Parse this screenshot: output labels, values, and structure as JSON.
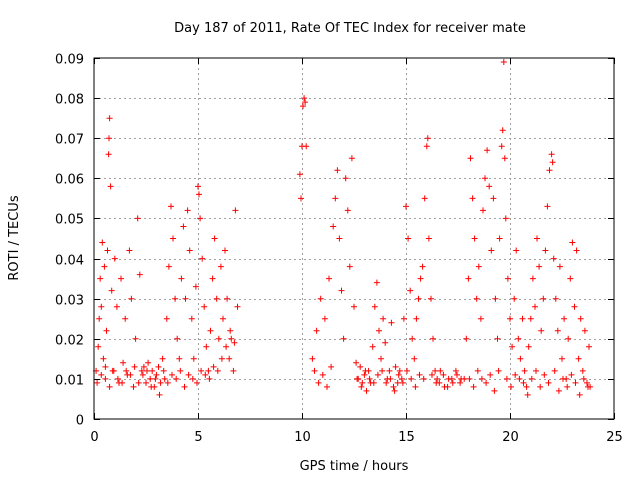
{
  "chart_data": {
    "type": "scatter",
    "title": "Day 187 of 2011, Rate Of TEC Index for receiver mate",
    "xlabel": "GPS time / hours",
    "ylabel": "ROTI / TECUs",
    "xlim": [
      0,
      25
    ],
    "ylim": [
      0,
      0.09
    ],
    "xticks": [
      0,
      5,
      10,
      15,
      20,
      25
    ],
    "xtick_labels": [
      "0",
      "5",
      "10",
      "15",
      "20",
      "25"
    ],
    "yticks": [
      0,
      0.01,
      0.02,
      0.03,
      0.04,
      0.05,
      0.06,
      0.07,
      0.08,
      0.09
    ],
    "ytick_labels": [
      "0",
      "0.01",
      "0.02",
      "0.03",
      "0.04",
      "0.05",
      "0.06",
      "0.07",
      "0.08",
      "0.09"
    ],
    "grid": true,
    "marker": "+",
    "color": "#ff0000",
    "series": [
      {
        "name": "ROTI",
        "points": [
          [
            0.1,
            0.012
          ],
          [
            0.2,
            0.018
          ],
          [
            0.25,
            0.025
          ],
          [
            0.3,
            0.035
          ],
          [
            0.35,
            0.028
          ],
          [
            0.4,
            0.044
          ],
          [
            0.45,
            0.015
          ],
          [
            0.5,
            0.038
          ],
          [
            0.55,
            0.01
          ],
          [
            0.6,
            0.022
          ],
          [
            0.65,
            0.042
          ],
          [
            0.7,
            0.066
          ],
          [
            0.72,
            0.07
          ],
          [
            0.75,
            0.075
          ],
          [
            0.8,
            0.058
          ],
          [
            0.85,
            0.032
          ],
          [
            0.9,
            0.012
          ],
          [
            1.0,
            0.04
          ],
          [
            1.1,
            0.028
          ],
          [
            1.2,
            0.009
          ],
          [
            1.3,
            0.035
          ],
          [
            1.4,
            0.014
          ],
          [
            1.5,
            0.025
          ],
          [
            1.6,
            0.011
          ],
          [
            1.7,
            0.042
          ],
          [
            1.8,
            0.03
          ],
          [
            1.9,
            0.008
          ],
          [
            2.0,
            0.02
          ],
          [
            2.1,
            0.05
          ],
          [
            2.2,
            0.036
          ],
          [
            2.3,
            0.012
          ],
          [
            2.4,
            0.013
          ],
          [
            2.5,
            0.009
          ],
          [
            2.6,
            0.014
          ],
          [
            2.7,
            0.01
          ],
          [
            2.8,
            0.012
          ],
          [
            2.9,
            0.008
          ],
          [
            3.0,
            0.011
          ],
          [
            3.1,
            0.013
          ],
          [
            3.2,
            0.009
          ],
          [
            3.3,
            0.015
          ],
          [
            3.4,
            0.01
          ],
          [
            3.5,
            0.025
          ],
          [
            3.6,
            0.038
          ],
          [
            3.7,
            0.053
          ],
          [
            3.8,
            0.045
          ],
          [
            3.9,
            0.03
          ],
          [
            4.0,
            0.02
          ],
          [
            4.1,
            0.015
          ],
          [
            4.2,
            0.035
          ],
          [
            4.3,
            0.048
          ],
          [
            4.4,
            0.03
          ],
          [
            4.5,
            0.052
          ],
          [
            4.6,
            0.042
          ],
          [
            4.7,
            0.025
          ],
          [
            4.8,
            0.015
          ],
          [
            4.9,
            0.033
          ],
          [
            5.0,
            0.058
          ],
          [
            5.05,
            0.056
          ],
          [
            5.1,
            0.05
          ],
          [
            5.2,
            0.04
          ],
          [
            5.3,
            0.028
          ],
          [
            5.4,
            0.018
          ],
          [
            5.5,
            0.012
          ],
          [
            5.6,
            0.022
          ],
          [
            5.7,
            0.035
          ],
          [
            5.8,
            0.045
          ],
          [
            5.9,
            0.03
          ],
          [
            6.0,
            0.02
          ],
          [
            6.1,
            0.038
          ],
          [
            6.2,
            0.025
          ],
          [
            6.3,
            0.042
          ],
          [
            6.4,
            0.03
          ],
          [
            6.5,
            0.015
          ],
          [
            6.6,
            0.02
          ],
          [
            6.7,
            0.012
          ],
          [
            6.8,
            0.052
          ],
          [
            6.9,
            0.028
          ],
          [
            0.15,
            0.009
          ],
          [
            0.35,
            0.011
          ],
          [
            0.55,
            0.013
          ],
          [
            0.75,
            0.008
          ],
          [
            0.95,
            0.012
          ],
          [
            1.15,
            0.01
          ],
          [
            1.35,
            0.009
          ],
          [
            1.55,
            0.012
          ],
          [
            1.75,
            0.011
          ],
          [
            1.95,
            0.013
          ],
          [
            2.15,
            0.009
          ],
          [
            2.35,
            0.011
          ],
          [
            2.55,
            0.012
          ],
          [
            2.75,
            0.008
          ],
          [
            2.95,
            0.01
          ],
          [
            3.15,
            0.006
          ],
          [
            3.35,
            0.012
          ],
          [
            3.55,
            0.009
          ],
          [
            3.75,
            0.011
          ],
          [
            3.95,
            0.01
          ],
          [
            4.15,
            0.012
          ],
          [
            4.35,
            0.008
          ],
          [
            4.55,
            0.011
          ],
          [
            4.75,
            0.01
          ],
          [
            4.95,
            0.009
          ],
          [
            5.15,
            0.012
          ],
          [
            5.35,
            0.011
          ],
          [
            5.55,
            0.01
          ],
          [
            5.75,
            0.013
          ],
          [
            5.95,
            0.012
          ],
          [
            6.15,
            0.015
          ],
          [
            6.35,
            0.018
          ],
          [
            6.55,
            0.022
          ],
          [
            6.75,
            0.019
          ],
          [
            9.9,
            0.061
          ],
          [
            9.95,
            0.055
          ],
          [
            10.0,
            0.068
          ],
          [
            10.05,
            0.078
          ],
          [
            10.1,
            0.08
          ],
          [
            10.15,
            0.079
          ],
          [
            10.2,
            0.068
          ],
          [
            10.5,
            0.015
          ],
          [
            10.7,
            0.022
          ],
          [
            10.9,
            0.03
          ],
          [
            11.1,
            0.025
          ],
          [
            11.3,
            0.035
          ],
          [
            11.5,
            0.048
          ],
          [
            11.6,
            0.055
          ],
          [
            11.7,
            0.062
          ],
          [
            11.8,
            0.045
          ],
          [
            11.9,
            0.032
          ],
          [
            12.0,
            0.02
          ],
          [
            12.1,
            0.06
          ],
          [
            12.2,
            0.052
          ],
          [
            12.3,
            0.038
          ],
          [
            12.4,
            0.065
          ],
          [
            12.5,
            0.028
          ],
          [
            12.6,
            0.014
          ],
          [
            12.7,
            0.01
          ],
          [
            12.8,
            0.013
          ],
          [
            12.9,
            0.009
          ],
          [
            13.0,
            0.011
          ],
          [
            13.1,
            0.007
          ],
          [
            13.2,
            0.012
          ],
          [
            13.3,
            0.009
          ],
          [
            13.4,
            0.018
          ],
          [
            13.5,
            0.028
          ],
          [
            13.6,
            0.034
          ],
          [
            13.7,
            0.022
          ],
          [
            13.8,
            0.015
          ],
          [
            13.9,
            0.025
          ],
          [
            14.0,
            0.019
          ],
          [
            14.1,
            0.01
          ],
          [
            14.2,
            0.012
          ],
          [
            14.3,
            0.024
          ],
          [
            14.4,
            0.008
          ],
          [
            14.5,
            0.013
          ],
          [
            14.6,
            0.009
          ],
          [
            14.7,
            0.012
          ],
          [
            14.8,
            0.01
          ],
          [
            14.9,
            0.025
          ],
          [
            15.0,
            0.053
          ],
          [
            15.1,
            0.045
          ],
          [
            15.2,
            0.032
          ],
          [
            15.3,
            0.02
          ],
          [
            15.4,
            0.015
          ],
          [
            15.5,
            0.025
          ],
          [
            15.6,
            0.03
          ],
          [
            15.7,
            0.035
          ],
          [
            15.8,
            0.038
          ],
          [
            15.9,
            0.055
          ],
          [
            16.0,
            0.068
          ],
          [
            16.05,
            0.07
          ],
          [
            16.1,
            0.045
          ],
          [
            16.2,
            0.03
          ],
          [
            16.3,
            0.02
          ],
          [
            16.4,
            0.012
          ],
          [
            16.5,
            0.01
          ],
          [
            16.6,
            0.009
          ],
          [
            16.8,
            0.011
          ],
          [
            17.0,
            0.008
          ],
          [
            17.2,
            0.01
          ],
          [
            17.4,
            0.012
          ],
          [
            17.6,
            0.009
          ],
          [
            17.8,
            0.01
          ],
          [
            10.6,
            0.012
          ],
          [
            10.8,
            0.009
          ],
          [
            11.0,
            0.011
          ],
          [
            11.2,
            0.008
          ],
          [
            11.4,
            0.013
          ],
          [
            12.65,
            0.01
          ],
          [
            12.85,
            0.008
          ],
          [
            13.05,
            0.012
          ],
          [
            13.25,
            0.01
          ],
          [
            13.45,
            0.009
          ],
          [
            13.65,
            0.011
          ],
          [
            13.85,
            0.012
          ],
          [
            14.05,
            0.009
          ],
          [
            14.25,
            0.01
          ],
          [
            14.45,
            0.007
          ],
          [
            14.65,
            0.011
          ],
          [
            14.85,
            0.009
          ],
          [
            15.05,
            0.012
          ],
          [
            15.25,
            0.01
          ],
          [
            15.45,
            0.008
          ],
          [
            15.65,
            0.011
          ],
          [
            15.85,
            0.01
          ],
          [
            16.25,
            0.011
          ],
          [
            16.45,
            0.009
          ],
          [
            16.65,
            0.012
          ],
          [
            16.85,
            0.008
          ],
          [
            17.05,
            0.01
          ],
          [
            17.25,
            0.009
          ],
          [
            17.45,
            0.011
          ],
          [
            17.65,
            0.01
          ],
          [
            17.9,
            0.02
          ],
          [
            18.0,
            0.035
          ],
          [
            18.1,
            0.065
          ],
          [
            18.2,
            0.055
          ],
          [
            18.3,
            0.045
          ],
          [
            18.4,
            0.03
          ],
          [
            18.5,
            0.038
          ],
          [
            18.6,
            0.025
          ],
          [
            18.7,
            0.052
          ],
          [
            18.8,
            0.06
          ],
          [
            18.9,
            0.067
          ],
          [
            19.0,
            0.058
          ],
          [
            19.1,
            0.042
          ],
          [
            19.2,
            0.055
          ],
          [
            19.3,
            0.03
          ],
          [
            19.4,
            0.02
          ],
          [
            19.5,
            0.045
          ],
          [
            19.6,
            0.068
          ],
          [
            19.65,
            0.072
          ],
          [
            19.7,
            0.089
          ],
          [
            19.75,
            0.065
          ],
          [
            19.8,
            0.05
          ],
          [
            19.9,
            0.035
          ],
          [
            20.0,
            0.025
          ],
          [
            20.1,
            0.018
          ],
          [
            20.2,
            0.03
          ],
          [
            20.3,
            0.042
          ],
          [
            20.4,
            0.02
          ],
          [
            20.5,
            0.015
          ],
          [
            20.6,
            0.025
          ],
          [
            20.7,
            0.012
          ],
          [
            20.8,
            0.008
          ],
          [
            20.9,
            0.018
          ],
          [
            21.0,
            0.025
          ],
          [
            21.1,
            0.035
          ],
          [
            21.2,
            0.028
          ],
          [
            21.3,
            0.045
          ],
          [
            21.4,
            0.038
          ],
          [
            21.5,
            0.022
          ],
          [
            21.6,
            0.03
          ],
          [
            21.7,
            0.042
          ],
          [
            21.8,
            0.053
          ],
          [
            21.9,
            0.062
          ],
          [
            22.0,
            0.066
          ],
          [
            22.05,
            0.064
          ],
          [
            22.1,
            0.04
          ],
          [
            22.2,
            0.03
          ],
          [
            22.3,
            0.022
          ],
          [
            22.4,
            0.038
          ],
          [
            22.5,
            0.015
          ],
          [
            22.6,
            0.025
          ],
          [
            22.7,
            0.01
          ],
          [
            22.8,
            0.02
          ],
          [
            22.9,
            0.035
          ],
          [
            23.0,
            0.044
          ],
          [
            23.1,
            0.028
          ],
          [
            23.2,
            0.042
          ],
          [
            23.3,
            0.015
          ],
          [
            23.4,
            0.025
          ],
          [
            23.5,
            0.012
          ],
          [
            23.6,
            0.022
          ],
          [
            23.7,
            0.009
          ],
          [
            23.8,
            0.018
          ],
          [
            23.85,
            0.008
          ],
          [
            18.05,
            0.01
          ],
          [
            18.25,
            0.008
          ],
          [
            18.45,
            0.012
          ],
          [
            18.65,
            0.01
          ],
          [
            18.85,
            0.009
          ],
          [
            19.05,
            0.011
          ],
          [
            19.25,
            0.007
          ],
          [
            19.45,
            0.012
          ],
          [
            19.85,
            0.01
          ],
          [
            20.05,
            0.008
          ],
          [
            20.25,
            0.011
          ],
          [
            20.45,
            0.01
          ],
          [
            20.65,
            0.009
          ],
          [
            20.85,
            0.006
          ],
          [
            21.05,
            0.01
          ],
          [
            21.25,
            0.012
          ],
          [
            21.45,
            0.008
          ],
          [
            21.65,
            0.011
          ],
          [
            21.85,
            0.009
          ],
          [
            22.15,
            0.012
          ],
          [
            22.35,
            0.007
          ],
          [
            22.55,
            0.01
          ],
          [
            22.75,
            0.008
          ],
          [
            22.95,
            0.011
          ],
          [
            23.15,
            0.009
          ],
          [
            23.35,
            0.006
          ],
          [
            23.55,
            0.01
          ],
          [
            23.75,
            0.008
          ]
        ]
      }
    ]
  }
}
